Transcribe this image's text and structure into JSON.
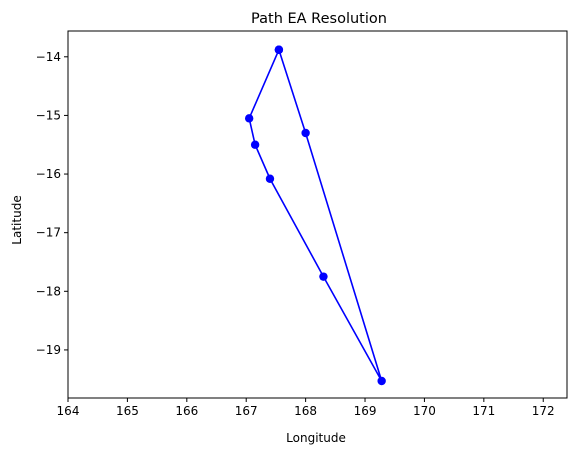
{
  "chart_data": {
    "type": "line",
    "title": "Path EA Resolution",
    "xlabel": "Longitude",
    "ylabel": "Latitude",
    "xlim": [
      164,
      172.4
    ],
    "ylim": [
      -19.82,
      -13.56
    ],
    "x_ticks": [
      164,
      165,
      166,
      167,
      168,
      169,
      170,
      171,
      172
    ],
    "y_ticks": [
      -14,
      -15,
      -16,
      -17,
      -18,
      -19
    ],
    "grid": false,
    "series": [
      {
        "color": "#0000ff",
        "marker": "circle",
        "points": [
          {
            "x": 167.55,
            "y": -13.88
          },
          {
            "x": 168.0,
            "y": -15.3
          },
          {
            "x": 169.28,
            "y": -19.53
          },
          {
            "x": 168.3,
            "y": -17.75
          },
          {
            "x": 167.4,
            "y": -16.08
          },
          {
            "x": 167.15,
            "y": -15.5
          },
          {
            "x": 167.05,
            "y": -15.05
          },
          {
            "x": 167.55,
            "y": -13.88
          }
        ]
      }
    ]
  }
}
